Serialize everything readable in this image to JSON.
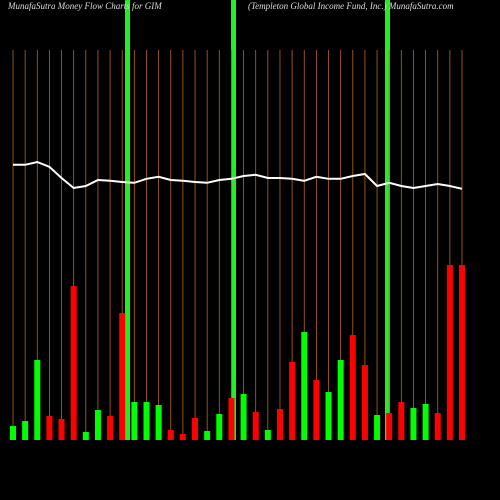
{
  "chart_data": {
    "type": "bar",
    "title": "MunafaSutra  Money Flow  Charts for GIM",
    "subtitle": "(Templeton  Global Income  Fund,  Inc.)  MunafaSutra.com",
    "values": [
      7,
      9.5,
      40,
      12,
      10.5,
      77,
      4,
      15,
      12,
      63.5,
      19,
      19,
      17.5,
      5,
      3,
      11,
      4.5,
      13,
      21,
      23,
      14,
      5,
      15.5,
      39,
      54,
      30,
      24,
      40,
      52.5,
      37.5,
      12.5,
      13.5,
      19,
      16,
      18,
      13.5,
      87.5,
      87.5
    ],
    "colors": [
      "#00ff00",
      "#00ff00",
      "#00ff00",
      "#ff0000",
      "#ff0000",
      "#ff0000",
      "#00ff00",
      "#00ff00",
      "#ff0000",
      "#ff0000",
      "#00ff00",
      "#00ff00",
      "#00ff00",
      "#ff0000",
      "#ff0000",
      "#ff0000",
      "#00ff00",
      "#00ff00",
      "#ff0000",
      "#00ff00",
      "#ff0000",
      "#00ff00",
      "#ff0000",
      "#ff0000",
      "#00ff00",
      "#ff0000",
      "#00ff00",
      "#00ff00",
      "#ff0000",
      "#ff0000",
      "#00ff00",
      "#ff0000",
      "#ff0000",
      "#00ff00",
      "#00ff00",
      "#ff0000",
      "#ff0000",
      "#ff0000"
    ],
    "ylim": [
      0,
      200
    ],
    "line": {
      "color": "#ffffff",
      "values": [
        68.8,
        68.8,
        69.5,
        68.3,
        65.5,
        63,
        63.5,
        65,
        64.8,
        64.5,
        64.3,
        65.3,
        65.8,
        65,
        64.8,
        64.5,
        64.3,
        65,
        65.3,
        66,
        66.3,
        65.5,
        65.5,
        65.3,
        64.8,
        65.8,
        65.3,
        65.3,
        66,
        66.5,
        63.5,
        64.3,
        63.5,
        63,
        63.5,
        64,
        63.5,
        62.8
      ]
    },
    "y2lim": [
      0,
      100
    ]
  }
}
